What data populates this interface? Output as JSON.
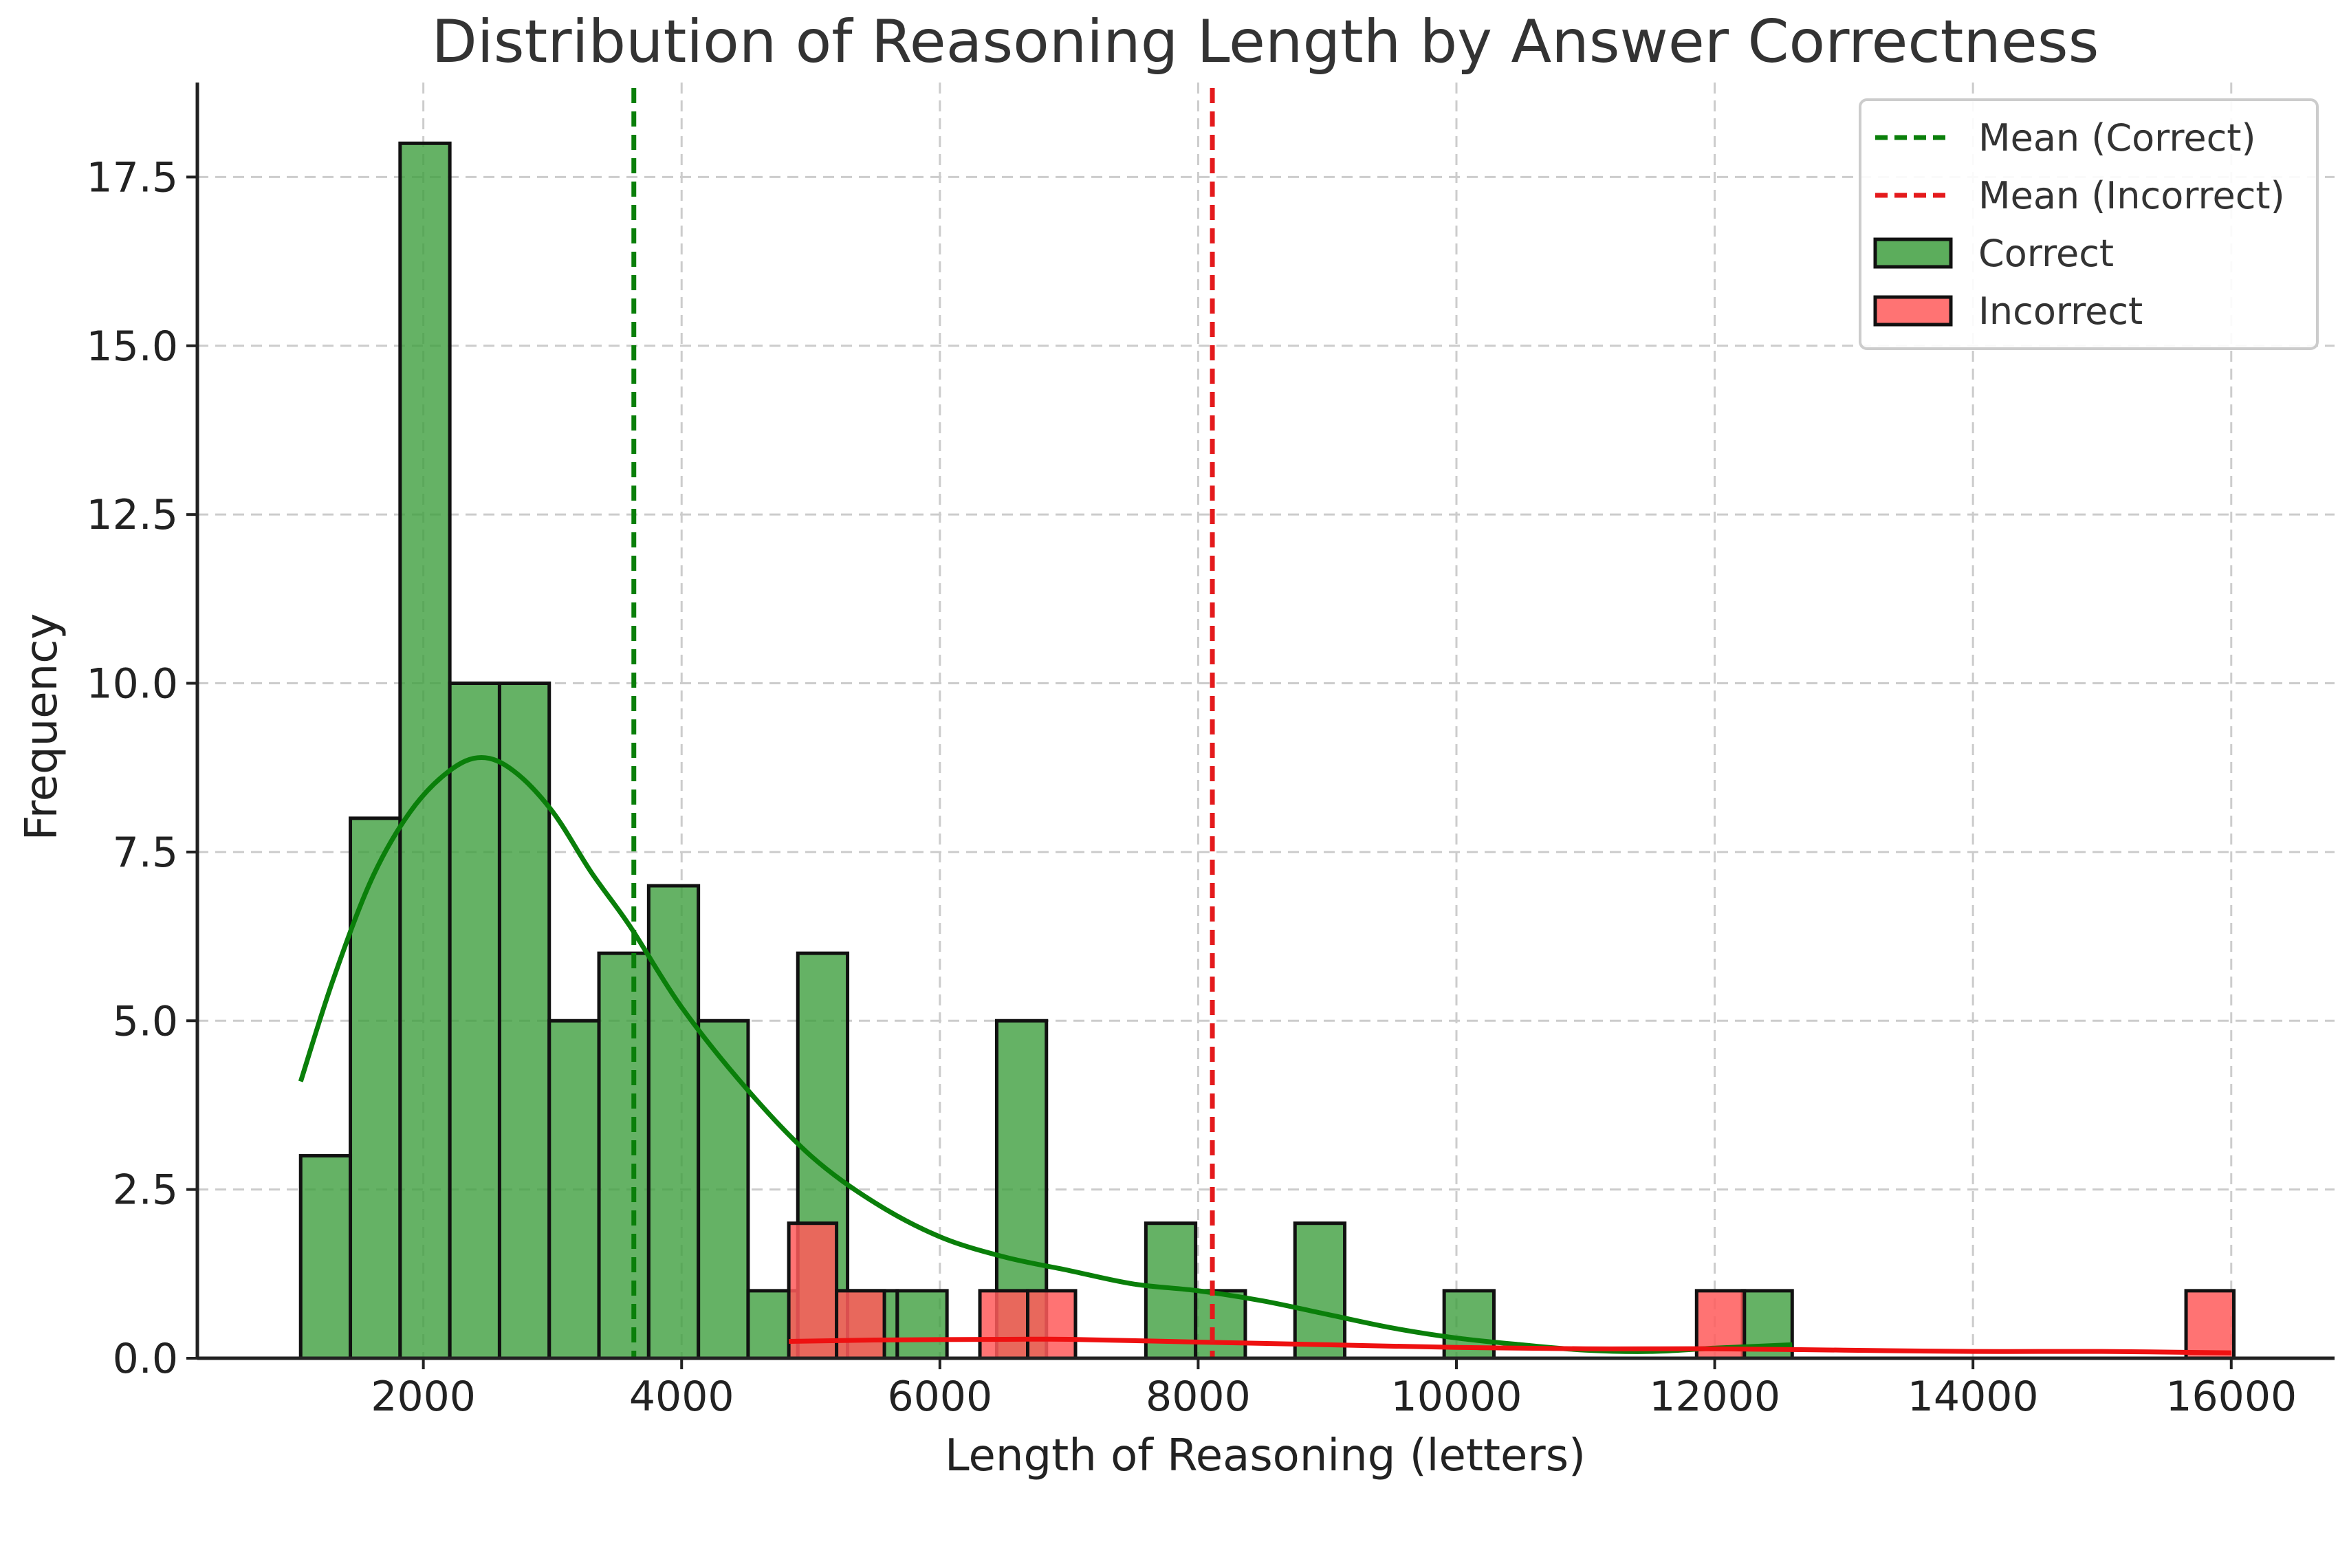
{
  "chart_data": {
    "type": "bar",
    "title": "Distribution of Reasoning Length by Answer Correctness",
    "xlabel": "Length of Reasoning (letters)",
    "ylabel": "Frequency",
    "xlim": [
      250,
      16800
    ],
    "ylim": [
      0,
      18.9
    ],
    "xticks": [
      2000,
      4000,
      6000,
      8000,
      10000,
      12000,
      14000,
      16000
    ],
    "yticks": [
      0,
      2.5,
      5,
      7.5,
      10,
      12.5,
      15,
      17.5
    ],
    "xtick_labels": [
      "2000",
      "4000",
      "6000",
      "8000",
      "10000",
      "12000",
      "14000",
      "16000"
    ],
    "ytick_labels": [
      "0.0",
      "2.5",
      "5.0",
      "7.5",
      "10.0",
      "12.5",
      "15.0",
      "17.5"
    ],
    "grid": true,
    "legend_position": "top-right",
    "series": [
      {
        "name": "Correct",
        "color": "#3f9f3f",
        "bins": [
          {
            "x0": 1050,
            "x1": 1435,
            "count": 3
          },
          {
            "x0": 1435,
            "x1": 1820,
            "count": 8
          },
          {
            "x0": 1820,
            "x1": 2205,
            "count": 18
          },
          {
            "x0": 2205,
            "x1": 2590,
            "count": 10
          },
          {
            "x0": 2590,
            "x1": 2975,
            "count": 10
          },
          {
            "x0": 2975,
            "x1": 3360,
            "count": 5
          },
          {
            "x0": 3360,
            "x1": 3745,
            "count": 6
          },
          {
            "x0": 3745,
            "x1": 4130,
            "count": 7
          },
          {
            "x0": 4130,
            "x1": 4515,
            "count": 5
          },
          {
            "x0": 4515,
            "x1": 4900,
            "count": 1
          },
          {
            "x0": 4900,
            "x1": 5285,
            "count": 6
          },
          {
            "x0": 5285,
            "x1": 5670,
            "count": 1
          },
          {
            "x0": 5670,
            "x1": 6055,
            "count": 1
          },
          {
            "x0": 6440,
            "x1": 6825,
            "count": 5
          },
          {
            "x0": 7595,
            "x1": 7980,
            "count": 2
          },
          {
            "x0": 7980,
            "x1": 8365,
            "count": 1
          },
          {
            "x0": 8750,
            "x1": 9135,
            "count": 2
          },
          {
            "x0": 9905,
            "x1": 10290,
            "count": 1
          },
          {
            "x0": 12215,
            "x1": 12600,
            "count": 1
          }
        ],
        "kde": [
          [
            1050,
            4.1
          ],
          [
            1300,
            5.6
          ],
          [
            1600,
            7.1
          ],
          [
            1900,
            8.1
          ],
          [
            2200,
            8.7
          ],
          [
            2450,
            8.9
          ],
          [
            2700,
            8.7
          ],
          [
            3000,
            8.1
          ],
          [
            3300,
            7.2
          ],
          [
            3600,
            6.4
          ],
          [
            4000,
            5.2
          ],
          [
            4500,
            4.0
          ],
          [
            5000,
            3.0
          ],
          [
            5500,
            2.3
          ],
          [
            6000,
            1.8
          ],
          [
            6500,
            1.5
          ],
          [
            7000,
            1.3
          ],
          [
            7500,
            1.1
          ],
          [
            8000,
            1.0
          ],
          [
            8500,
            0.85
          ],
          [
            9000,
            0.65
          ],
          [
            9500,
            0.45
          ],
          [
            10000,
            0.3
          ],
          [
            10500,
            0.2
          ],
          [
            11000,
            0.12
          ],
          [
            11500,
            0.1
          ],
          [
            12000,
            0.15
          ],
          [
            12600,
            0.2
          ]
        ]
      },
      {
        "name": "Incorrect",
        "color": "#ff5a5a",
        "bins": [
          {
            "x0": 4830,
            "x1": 5200,
            "count": 2
          },
          {
            "x0": 5200,
            "x1": 5570,
            "count": 1
          },
          {
            "x0": 6310,
            "x1": 6680,
            "count": 1
          },
          {
            "x0": 6680,
            "x1": 7050,
            "count": 1
          },
          {
            "x0": 11860,
            "x1": 12230,
            "count": 1
          },
          {
            "x0": 15650,
            "x1": 16020,
            "count": 1
          }
        ],
        "kde": [
          [
            4830,
            0.25
          ],
          [
            5500,
            0.27
          ],
          [
            6500,
            0.28
          ],
          [
            7000,
            0.28
          ],
          [
            8000,
            0.24
          ],
          [
            9000,
            0.2
          ],
          [
            10000,
            0.16
          ],
          [
            11000,
            0.14
          ],
          [
            12000,
            0.14
          ],
          [
            13000,
            0.12
          ],
          [
            14000,
            0.1
          ],
          [
            15000,
            0.1
          ],
          [
            16000,
            0.08
          ]
        ]
      }
    ],
    "mean_lines": [
      {
        "label": "Mean (Correct)",
        "x": 3630,
        "color": "#0a7f0a"
      },
      {
        "label": "Mean (Incorrect)",
        "x": 8110,
        "color": "#e41a1c"
      }
    ],
    "legend_items": [
      {
        "label": "Mean (Correct)",
        "kind": "dashed-line",
        "color": "#0a7f0a"
      },
      {
        "label": "Mean (Incorrect)",
        "kind": "dashed-line",
        "color": "#e41a1c"
      },
      {
        "label": "Correct",
        "kind": "patch",
        "color": "#3f9f3f"
      },
      {
        "label": "Incorrect",
        "kind": "patch",
        "color": "#ff5a5a"
      }
    ]
  }
}
